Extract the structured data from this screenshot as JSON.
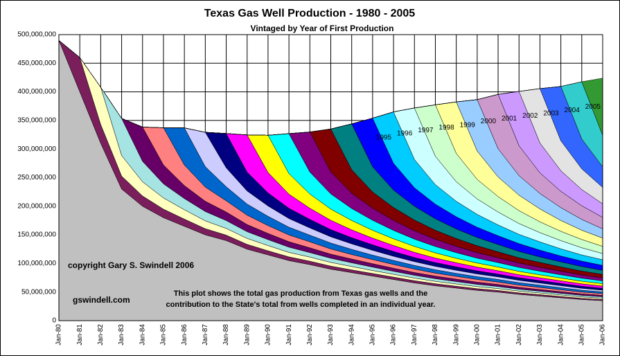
{
  "chart_data": {
    "type": "stacked_area",
    "title": "Texas Gas Well Production - 1980 - 2005",
    "subtitle": "Vintaged by Year of First Production",
    "annotations": [
      "copyright Gary S. Swindell 2006",
      "gswindell.com"
    ],
    "note": [
      "This plot shows the total gas production from Texas gas wells and the",
      "contribution to the State's total from wells completed in an individual year."
    ],
    "categories": [
      "Jan-80",
      "Jan-81",
      "Jan-82",
      "Jan-83",
      "Jan-84",
      "Jan-85",
      "Jan-86",
      "Jan-87",
      "Jan-88",
      "Jan-89",
      "Jan-90",
      "Jan-91",
      "Jan-92",
      "Jan-93",
      "Jan-94",
      "Jan-95",
      "Jan-96",
      "Jan-97",
      "Jan-98",
      "Jan-99",
      "Jan-00",
      "Jan-01",
      "Jan-02",
      "Jan-03",
      "Jan-04",
      "Jan-05",
      "Jan-06"
    ],
    "ylim": [
      0,
      500000000
    ],
    "yticks": [
      0,
      {
        "value": 50000000,
        "label": "50,000,000"
      },
      {
        "value": 100000000,
        "label": "100,000,000"
      },
      {
        "value": 150000000,
        "label": "150,000,000"
      },
      {
        "value": 200000000,
        "label": "200,000,000"
      },
      {
        "value": 250000000,
        "label": "250,000,000"
      },
      {
        "value": 300000000,
        "label": "300,000,000"
      },
      {
        "value": 350000000,
        "label": "350,000,000"
      },
      {
        "value": 400000000,
        "label": "400,000,000"
      },
      {
        "value": 450000000,
        "label": "450,000,000"
      },
      {
        "value": 500000000,
        "label": "500,000,000"
      }
    ],
    "grid": true,
    "series": [
      {
        "color": "#c0c0c0",
        "values": [
          490000000.0,
          400000000.0,
          310000000.0,
          230000000.0,
          200000000.0,
          180000000.0,
          165000000.0,
          150000000.0,
          140000000.0,
          125000000.0,
          115000000.0,
          105000000.0,
          98000000.0,
          90000000.0,
          84000000.0,
          78000000.0,
          72000000.0,
          66000000.0,
          61000000.0,
          57000000.0,
          53000000.0,
          50000000.0,
          46000000.0,
          43000000.0,
          40000000.0,
          37000000.0,
          35000000.0
        ]
      },
      {
        "color": "#7a1f5c",
        "values": [
          0,
          60000000.0,
          33000000.0,
          22800000.0,
          18000000.0,
          15000000.0,
          12600000.0,
          10800000.0,
          9600000.0,
          8400000.0,
          7200000.0,
          6600000.0,
          6000000.0,
          5400000.0,
          4800000.0,
          4500000.0,
          4200000.0,
          3900000.0,
          3600000.0,
          3300000.0,
          3000000.0,
          2800000.0,
          2600000.0,
          2500000.0,
          2300000.0,
          2100000.0,
          2000000.0
        ]
      },
      {
        "color": "#ffffc0",
        "values": [
          0,
          0,
          65000000.0,
          35800000.0,
          24700000.0,
          19500000.0,
          16300000.0,
          13700000.0,
          11700000.0,
          10400000.0,
          9100000.0,
          7800000.0,
          7200000.0,
          6500000.0,
          5900000.0,
          5200000.0,
          4900000.0,
          4600000.0,
          4200000.0,
          3900000.0,
          3600000.0,
          3300000.0,
          3100000.0,
          2900000.0,
          2700000.0,
          2500000.0,
          2300000.0
        ]
      },
      {
        "color": "#a6e3e3",
        "values": [
          0,
          0,
          0,
          65000000.0,
          35800000.0,
          24700000.0,
          19500000.0,
          16300000.0,
          13700000.0,
          11700000.0,
          10400000.0,
          9100000.0,
          7800000.0,
          7200000.0,
          6500000.0,
          5900000.0,
          5200000.0,
          4900000.0,
          4600000.0,
          4200000.0,
          3900000.0,
          3600000.0,
          3300000.0,
          3100000.0,
          2900000.0,
          2700000.0,
          2500000.0
        ]
      },
      {
        "color": "#660066",
        "values": [
          0,
          0,
          0,
          0,
          60000000.0,
          33000000.0,
          22800000.0,
          18000000.0,
          15000000.0,
          12600000.0,
          10800000.0,
          9600000.0,
          8400000.0,
          7200000.0,
          6600000.0,
          6000000.0,
          5400000.0,
          4800000.0,
          4500000.0,
          4200000.0,
          3900000.0,
          3600000.0,
          3300000.0,
          3000000.0,
          2800000.0,
          2600000.0,
          2500000.0
        ]
      },
      {
        "color": "#ff8080",
        "values": [
          0,
          0,
          0,
          0,
          0,
          65000000.0,
          35800000.0,
          24700000.0,
          19500000.0,
          16300000.0,
          13700000.0,
          11700000.0,
          10400000.0,
          9100000.0,
          7800000.0,
          7200000.0,
          6500000.0,
          5900000.0,
          5200000.0,
          4900000.0,
          4600000.0,
          4200000.0,
          3900000.0,
          3600000.0,
          3300000.0,
          3100000.0,
          2900000.0
        ]
      },
      {
        "color": "#0066cc",
        "values": [
          0,
          0,
          0,
          0,
          0,
          0,
          65000000.0,
          35800000.0,
          24700000.0,
          19500000.0,
          16300000.0,
          13700000.0,
          11700000.0,
          10400000.0,
          9100000.0,
          7800000.0,
          7200000.0,
          6500000.0,
          5900000.0,
          5200000.0,
          4900000.0,
          4600000.0,
          4200000.0,
          3900000.0,
          3600000.0,
          3300000.0,
          3100000.0
        ]
      },
      {
        "color": "#ccccff",
        "values": [
          0,
          0,
          0,
          0,
          0,
          0,
          0,
          60000000.0,
          33000000.0,
          22800000.0,
          18000000.0,
          15000000.0,
          12600000.0,
          10800000.0,
          9600000.0,
          8400000.0,
          7200000.0,
          6600000.0,
          6000000.0,
          5400000.0,
          4800000.0,
          4500000.0,
          4200000.0,
          3900000.0,
          3600000.0,
          3300000.0,
          3000000.0
        ]
      },
      {
        "color": "#000080",
        "values": [
          0,
          0,
          0,
          0,
          0,
          0,
          0,
          0,
          60000000.0,
          33000000.0,
          22800000.0,
          18000000.0,
          15000000.0,
          12600000.0,
          10800000.0,
          9600000.0,
          8400000.0,
          7200000.0,
          6600000.0,
          6000000.0,
          5400000.0,
          4800000.0,
          4500000.0,
          4200000.0,
          3900000.0,
          3600000.0,
          3300000.0
        ]
      },
      {
        "color": "#ff00ff",
        "values": [
          0,
          0,
          0,
          0,
          0,
          0,
          0,
          0,
          0,
          65000000.0,
          35800000.0,
          24700000.0,
          19500000.0,
          16300000.0,
          13700000.0,
          11700000.0,
          10400000.0,
          9100000.0,
          7800000.0,
          7200000.0,
          6500000.0,
          5900000.0,
          5200000.0,
          4900000.0,
          4600000.0,
          4200000.0,
          3900000.0
        ]
      },
      {
        "color": "#ffff00",
        "values": [
          0,
          0,
          0,
          0,
          0,
          0,
          0,
          0,
          0,
          0,
          65000000.0,
          35800000.0,
          24700000.0,
          19500000.0,
          16300000.0,
          13700000.0,
          11700000.0,
          10400000.0,
          9100000.0,
          7800000.0,
          7200000.0,
          6500000.0,
          5900000.0,
          5200000.0,
          4900000.0,
          4600000.0,
          4200000.0
        ]
      },
      {
        "color": "#00ffff",
        "values": [
          0,
          0,
          0,
          0,
          0,
          0,
          0,
          0,
          0,
          0,
          0,
          70000000.0,
          38500000.0,
          26600000.0,
          21000000.0,
          17500000.0,
          14700000.0,
          12600000.0,
          11200000.0,
          9800000.0,
          8400000.0,
          7700000.0,
          7000000.0,
          6300000.0,
          5600000.0,
          5300000.0,
          4900000.0
        ]
      },
      {
        "color": "#800080",
        "values": [
          0,
          0,
          0,
          0,
          0,
          0,
          0,
          0,
          0,
          0,
          0,
          0,
          70000000.0,
          38500000.0,
          26600000.0,
          21000000.0,
          17500000.0,
          14700000.0,
          12600000.0,
          11200000.0,
          9800000.0,
          8400000.0,
          7700000.0,
          7000000.0,
          6300000.0,
          5600000.0,
          5300000.0
        ]
      },
      {
        "color": "#800000",
        "values": [
          0,
          0,
          0,
          0,
          0,
          0,
          0,
          0,
          0,
          0,
          0,
          0,
          0,
          75000000.0,
          41300000.0,
          28500000.0,
          22500000.0,
          18800000.0,
          15800000.0,
          13500000.0,
          12000000.0,
          10500000.0,
          9000000.0,
          8300000.0,
          7500000.0,
          6800000.0,
          6000000.0
        ]
      },
      {
        "color": "#008080",
        "values": [
          0,
          0,
          0,
          0,
          0,
          0,
          0,
          0,
          0,
          0,
          0,
          0,
          0,
          0,
          80000000.0,
          44000000.0,
          30400000.0,
          24000000.0,
          20000000.0,
          16800000.0,
          14400000.0,
          12800000.0,
          11200000.0,
          9600000.0,
          8800000.0,
          8000000.0,
          7200000.0
        ]
      },
      {
        "color": "#0000ff",
        "values": [
          0,
          0,
          0,
          0,
          0,
          0,
          0,
          0,
          0,
          0,
          0,
          0,
          0,
          0,
          0,
          85000000.0,
          46800000.0,
          32300000.0,
          25500000.0,
          21300000.0,
          17900000.0,
          15300000.0,
          13600000.0,
          11900000.0,
          10200000.0,
          9400000.0,
          8500000.0
        ]
      },
      {
        "name": "1995",
        "color": "#00ccff",
        "values": [
          0,
          0,
          0,
          0,
          0,
          0,
          0,
          0,
          0,
          0,
          0,
          0,
          0,
          0,
          0,
          0,
          90000000.0,
          49500000.0,
          34200000.0,
          27000000.0,
          22500000.0,
          18900000.0,
          16200000.0,
          14400000.0,
          12600000.0,
          10800000.0,
          9900000.0
        ]
      },
      {
        "name": "1996",
        "color": "#ccffff",
        "values": [
          0,
          0,
          0,
          0,
          0,
          0,
          0,
          0,
          0,
          0,
          0,
          0,
          0,
          0,
          0,
          0,
          0,
          90000000.0,
          49500000.0,
          34200000.0,
          27000000.0,
          22500000.0,
          18900000.0,
          16200000.0,
          14400000.0,
          12600000.0,
          10800000.0
        ]
      },
      {
        "name": "1997",
        "color": "#ccffcc",
        "values": [
          0,
          0,
          0,
          0,
          0,
          0,
          0,
          0,
          0,
          0,
          0,
          0,
          0,
          0,
          0,
          0,
          0,
          0,
          90000000.0,
          49500000.0,
          34200000.0,
          27000000.0,
          22500000.0,
          18900000.0,
          16200000.0,
          14400000.0,
          12600000.0
        ]
      },
      {
        "name": "1998",
        "color": "#ffff99",
        "values": [
          0,
          0,
          0,
          0,
          0,
          0,
          0,
          0,
          0,
          0,
          0,
          0,
          0,
          0,
          0,
          0,
          0,
          0,
          0,
          90000000.0,
          49500000.0,
          34200000.0,
          27000000.0,
          22500000.0,
          18900000.0,
          16200000.0,
          14400000.0
        ]
      },
      {
        "name": "1999",
        "color": "#99ccff",
        "values": [
          0,
          0,
          0,
          0,
          0,
          0,
          0,
          0,
          0,
          0,
          0,
          0,
          0,
          0,
          0,
          0,
          0,
          0,
          0,
          0,
          90000000.0,
          49500000.0,
          34200000.0,
          27000000.0,
          22500000.0,
          18900000.0,
          16200000.0
        ]
      },
      {
        "name": "2000",
        "color": "#cc99cc",
        "values": [
          0,
          0,
          0,
          0,
          0,
          0,
          0,
          0,
          0,
          0,
          0,
          0,
          0,
          0,
          0,
          0,
          0,
          0,
          0,
          0,
          0,
          95000000.0,
          52300000.0,
          36100000.0,
          28500000.0,
          23800000.0,
          20000000.0
        ]
      },
      {
        "name": "2001",
        "color": "#cc99ff",
        "values": [
          0,
          0,
          0,
          0,
          0,
          0,
          0,
          0,
          0,
          0,
          0,
          0,
          0,
          0,
          0,
          0,
          0,
          0,
          0,
          0,
          0,
          0,
          95000000.0,
          52300000.0,
          36100000.0,
          28500000.0,
          23800000.0
        ]
      },
      {
        "name": "2002",
        "color": "#e3e3e3",
        "values": [
          0,
          0,
          0,
          0,
          0,
          0,
          0,
          0,
          0,
          0,
          0,
          0,
          0,
          0,
          0,
          0,
          0,
          0,
          0,
          0,
          0,
          0,
          0,
          95000000.0,
          52300000.0,
          36100000.0,
          28500000.0
        ]
      },
      {
        "name": "2003",
        "color": "#3366ff",
        "values": [
          0,
          0,
          0,
          0,
          0,
          0,
          0,
          0,
          0,
          0,
          0,
          0,
          0,
          0,
          0,
          0,
          0,
          0,
          0,
          0,
          0,
          0,
          0,
          0,
          95000000.0,
          52300000.0,
          36100000.0
        ]
      },
      {
        "name": "2004",
        "color": "#33cccc",
        "values": [
          0,
          0,
          0,
          0,
          0,
          0,
          0,
          0,
          0,
          0,
          0,
          0,
          0,
          0,
          0,
          0,
          0,
          0,
          0,
          0,
          0,
          0,
          0,
          0,
          0,
          100000000.0,
          55000000.0
        ]
      },
      {
        "name": "2005",
        "color": "#339933",
        "values": [
          0,
          0,
          0,
          0,
          0,
          0,
          0,
          0,
          0,
          0,
          0,
          0,
          0,
          0,
          0,
          0,
          0,
          0,
          0,
          0,
          0,
          0,
          0,
          0,
          0,
          0,
          100000000.0
        ]
      }
    ]
  }
}
